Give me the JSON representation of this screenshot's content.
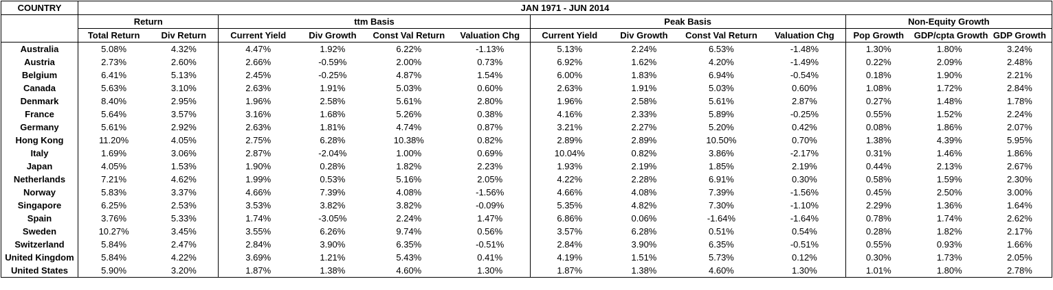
{
  "header": {
    "country_label": "COUNTRY",
    "period": "JAN 1971 - JUN 2014",
    "groups": [
      "Return",
      "ttm Basis",
      "Peak Basis",
      "Non-Equity Growth"
    ],
    "columns": [
      "Total Return",
      "Div Return",
      "Current Yield",
      "Div Growth",
      "Const Val Return",
      "Valuation Chg",
      "Current Yield",
      "Div Growth",
      "Const Val Return",
      "Valuation Chg",
      "Pop Growth",
      "GDP/cpta Growth",
      "GDP Growth"
    ]
  },
  "rows": [
    {
      "country": "Australia",
      "values": [
        "5.08%",
        "4.32%",
        "4.47%",
        "1.92%",
        "6.22%",
        "-1.13%",
        "5.13%",
        "2.24%",
        "6.53%",
        "-1.48%",
        "1.30%",
        "1.80%",
        "3.24%"
      ]
    },
    {
      "country": "Austria",
      "values": [
        "2.73%",
        "2.60%",
        "2.66%",
        "-0.59%",
        "2.00%",
        "0.73%",
        "6.92%",
        "1.62%",
        "4.20%",
        "-1.49%",
        "0.22%",
        "2.09%",
        "2.48%"
      ]
    },
    {
      "country": "Belgium",
      "values": [
        "6.41%",
        "5.13%",
        "2.45%",
        "-0.25%",
        "4.87%",
        "1.54%",
        "6.00%",
        "1.83%",
        "6.94%",
        "-0.54%",
        "0.18%",
        "1.90%",
        "2.21%"
      ]
    },
    {
      "country": "Canada",
      "values": [
        "5.63%",
        "3.10%",
        "2.63%",
        "1.91%",
        "5.03%",
        "0.60%",
        "2.63%",
        "1.91%",
        "5.03%",
        "0.60%",
        "1.08%",
        "1.72%",
        "2.84%"
      ]
    },
    {
      "country": "Denmark",
      "values": [
        "8.40%",
        "2.95%",
        "1.96%",
        "2.58%",
        "5.61%",
        "2.80%",
        "1.96%",
        "2.58%",
        "5.61%",
        "2.87%",
        "0.27%",
        "1.48%",
        "1.78%"
      ]
    },
    {
      "country": "France",
      "values": [
        "5.64%",
        "3.57%",
        "3.16%",
        "1.68%",
        "5.26%",
        "0.38%",
        "4.16%",
        "2.33%",
        "5.89%",
        "-0.25%",
        "0.55%",
        "1.52%",
        "2.24%"
      ]
    },
    {
      "country": "Germany",
      "values": [
        "5.61%",
        "2.92%",
        "2.63%",
        "1.81%",
        "4.74%",
        "0.87%",
        "3.21%",
        "2.27%",
        "5.20%",
        "0.42%",
        "0.08%",
        "1.86%",
        "2.07%"
      ]
    },
    {
      "country": "Hong Kong",
      "values": [
        "11.20%",
        "4.05%",
        "2.75%",
        "6.28%",
        "10.38%",
        "0.82%",
        "2.89%",
        "2.89%",
        "10.50%",
        "0.70%",
        "1.38%",
        "4.39%",
        "5.95%"
      ]
    },
    {
      "country": "Italy",
      "values": [
        "1.69%",
        "3.06%",
        "2.87%",
        "-2.04%",
        "1.00%",
        "0.69%",
        "10.04%",
        "0.82%",
        "3.86%",
        "-2.17%",
        "0.31%",
        "1.46%",
        "1.86%"
      ]
    },
    {
      "country": "Japan",
      "values": [
        "4.05%",
        "1.53%",
        "1.90%",
        "0.28%",
        "1.82%",
        "2.23%",
        "1.93%",
        "2.19%",
        "1.85%",
        "2.19%",
        "0.44%",
        "2.13%",
        "2.67%"
      ]
    },
    {
      "country": "Netherlands",
      "values": [
        "7.21%",
        "4.62%",
        "1.99%",
        "0.53%",
        "5.16%",
        "2.05%",
        "4.22%",
        "2.28%",
        "6.91%",
        "0.30%",
        "0.58%",
        "1.59%",
        "2.30%"
      ]
    },
    {
      "country": "Norway",
      "values": [
        "5.83%",
        "3.37%",
        "4.66%",
        "7.39%",
        "4.08%",
        "-1.56%",
        "4.66%",
        "4.08%",
        "7.39%",
        "-1.56%",
        "0.45%",
        "2.50%",
        "3.00%"
      ]
    },
    {
      "country": "Singapore",
      "values": [
        "6.25%",
        "2.53%",
        "3.53%",
        "3.82%",
        "3.82%",
        "-0.09%",
        "5.35%",
        "4.82%",
        "7.30%",
        "-1.10%",
        "2.29%",
        "1.36%",
        "1.64%"
      ]
    },
    {
      "country": "Spain",
      "values": [
        "3.76%",
        "5.33%",
        "1.74%",
        "-3.05%",
        "2.24%",
        "1.47%",
        "6.86%",
        "0.06%",
        "-1.64%",
        "-1.64%",
        "0.78%",
        "1.74%",
        "2.62%"
      ]
    },
    {
      "country": "Sweden",
      "values": [
        "10.27%",
        "3.45%",
        "3.55%",
        "6.26%",
        "9.74%",
        "0.56%",
        "3.57%",
        "6.28%",
        "0.51%",
        "0.54%",
        "0.28%",
        "1.82%",
        "2.17%"
      ]
    },
    {
      "country": "Switzerland",
      "values": [
        "5.84%",
        "2.47%",
        "2.84%",
        "3.90%",
        "6.35%",
        "-0.51%",
        "2.84%",
        "3.90%",
        "6.35%",
        "-0.51%",
        "0.55%",
        "0.93%",
        "1.66%"
      ]
    },
    {
      "country": "United Kingdom",
      "values": [
        "5.84%",
        "4.22%",
        "3.69%",
        "1.21%",
        "5.43%",
        "0.41%",
        "4.19%",
        "1.51%",
        "5.73%",
        "0.12%",
        "0.30%",
        "1.73%",
        "2.05%"
      ]
    },
    {
      "country": "United States",
      "values": [
        "5.90%",
        "3.20%",
        "1.87%",
        "1.38%",
        "4.60%",
        "1.30%",
        "1.87%",
        "1.38%",
        "4.60%",
        "1.30%",
        "1.01%",
        "1.80%",
        "2.78%"
      ]
    }
  ]
}
